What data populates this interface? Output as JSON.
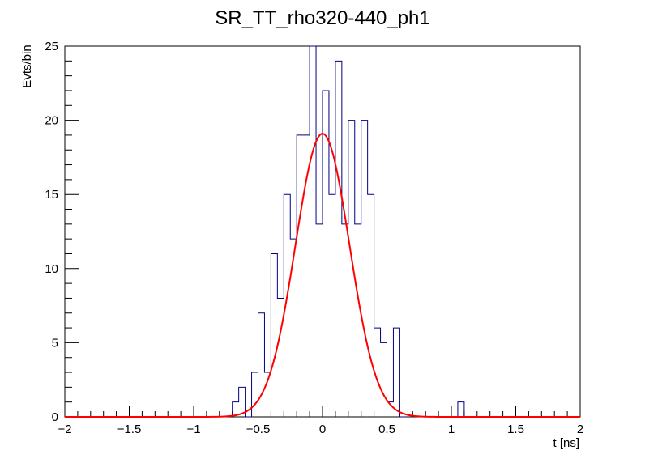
{
  "chart_data": {
    "type": "histogram",
    "title": "SR_TT_rho320-440_ph1",
    "xlabel": "t [ns]",
    "ylabel": "Evts/bin",
    "xlim": [
      -2,
      2
    ],
    "ylim": [
      0,
      25
    ],
    "x_ticks": [
      -2,
      -1.5,
      -1,
      -0.5,
      0,
      0.5,
      1,
      1.5,
      2
    ],
    "x_tick_labels": [
      "−2",
      "−1.5",
      "−1",
      "−0.5",
      "0",
      "0.5",
      "1",
      "1.5",
      "2"
    ],
    "y_ticks": [
      0,
      5,
      10,
      15,
      20,
      25
    ],
    "y_tick_labels": [
      "0",
      "5",
      "10",
      "15",
      "20",
      "25"
    ],
    "bin_width": 0.05,
    "bins": [
      {
        "x0": -0.7,
        "x1": -0.65,
        "y": 1
      },
      {
        "x0": -0.65,
        "x1": -0.6,
        "y": 2
      },
      {
        "x0": -0.6,
        "x1": -0.55,
        "y": 0
      },
      {
        "x0": -0.55,
        "x1": -0.5,
        "y": 3
      },
      {
        "x0": -0.5,
        "x1": -0.45,
        "y": 7
      },
      {
        "x0": -0.45,
        "x1": -0.4,
        "y": 3
      },
      {
        "x0": -0.4,
        "x1": -0.35,
        "y": 11
      },
      {
        "x0": -0.35,
        "x1": -0.3,
        "y": 8
      },
      {
        "x0": -0.3,
        "x1": -0.25,
        "y": 15
      },
      {
        "x0": -0.25,
        "x1": -0.2,
        "y": 12
      },
      {
        "x0": -0.2,
        "x1": -0.15,
        "y": 19
      },
      {
        "x0": -0.15,
        "x1": -0.1,
        "y": 19
      },
      {
        "x0": -0.1,
        "x1": -0.05,
        "y": 25
      },
      {
        "x0": -0.05,
        "x1": 0.0,
        "y": 13
      },
      {
        "x0": 0.0,
        "x1": 0.05,
        "y": 22
      },
      {
        "x0": 0.05,
        "x1": 0.1,
        "y": 15
      },
      {
        "x0": 0.1,
        "x1": 0.15,
        "y": 24
      },
      {
        "x0": 0.15,
        "x1": 0.2,
        "y": 13
      },
      {
        "x0": 0.2,
        "x1": 0.25,
        "y": 20
      },
      {
        "x0": 0.25,
        "x1": 0.3,
        "y": 13
      },
      {
        "x0": 0.3,
        "x1": 0.35,
        "y": 20
      },
      {
        "x0": 0.35,
        "x1": 0.4,
        "y": 15
      },
      {
        "x0": 0.4,
        "x1": 0.45,
        "y": 6
      },
      {
        "x0": 0.45,
        "x1": 0.5,
        "y": 5
      },
      {
        "x0": 0.5,
        "x1": 0.55,
        "y": 1
      },
      {
        "x0": 0.55,
        "x1": 0.6,
        "y": 6
      },
      {
        "x0": 0.6,
        "x1": 0.65,
        "y": 0
      },
      {
        "x0": 1.05,
        "x1": 1.1,
        "y": 1
      }
    ],
    "fit": {
      "type": "gaussian",
      "amplitude": 19.1,
      "mean": 0.0,
      "sigma": 0.21
    },
    "colors": {
      "histogram": "#000080",
      "fit": "#ff0000",
      "axis": "#000000"
    }
  }
}
